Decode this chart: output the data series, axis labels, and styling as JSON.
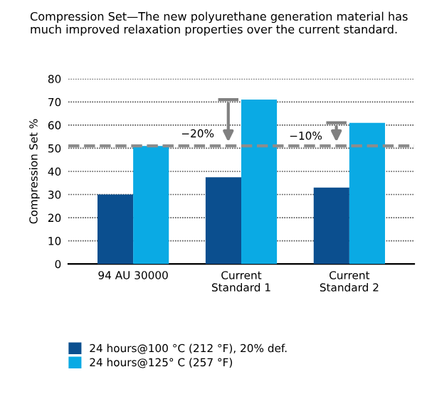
{
  "chart_data": {
    "type": "bar",
    "title": "Compression Set—The new polyurethane generation material has much improved relaxation properties over the current standard.",
    "ylabel": "Compression Set %",
    "categories": [
      "94 AU 30000",
      "Current\nStandard 1",
      "Current\nStandard 2"
    ],
    "series": [
      {
        "name": "24 hours@100 °C (212 °F), 20% def.",
        "color": "#0b4f8f",
        "values": [
          30,
          37.5,
          33
        ]
      },
      {
        "name": "24 hours@125° C (257 °F)",
        "color": "#0aaae4",
        "values": [
          51,
          71,
          61
        ]
      }
    ],
    "ylim": [
      0,
      80
    ],
    "yticks": [
      0,
      10,
      20,
      30,
      40,
      50,
      60,
      70,
      80
    ],
    "grid": "y",
    "legend": "bottom left",
    "ref_lines": [
      {
        "axis": "y",
        "value": 51,
        "color": "#8c8c8c",
        "line_style": "dashed"
      }
    ],
    "annotations": [
      {
        "text": "−20%",
        "x": "Current\nStandard 1",
        "y": 56
      },
      {
        "text": "−10%",
        "x": "Current\nStandard 2",
        "y": 55
      }
    ]
  }
}
